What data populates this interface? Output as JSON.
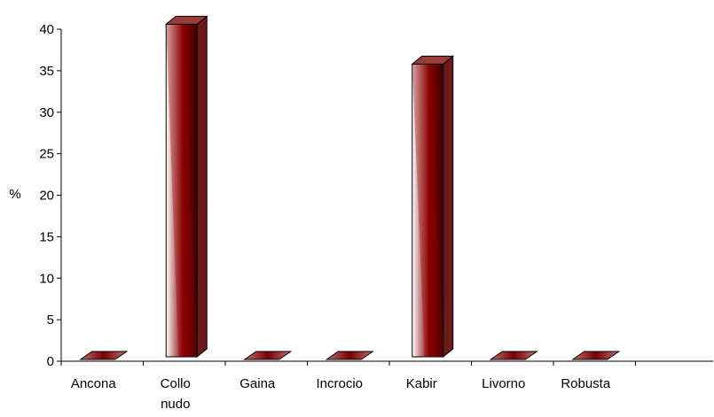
{
  "chart_data": {
    "type": "bar",
    "style": "3d-column",
    "categories": [
      "Ancona",
      "Collo nudo",
      "Gaina",
      "Incrocio",
      "Kabir",
      "Livorno",
      "Robusta"
    ],
    "values": [
      0,
      40.6,
      0,
      0,
      35.8,
      0,
      0
    ],
    "title": "",
    "xlabel": "",
    "ylabel": "%",
    "ylim": [
      0,
      40
    ],
    "yticks": [
      0,
      5,
      10,
      15,
      20,
      25,
      30,
      35,
      40
    ],
    "grid": false,
    "legend": "none",
    "colors": {
      "bar_dark": "#8b0000",
      "bar_light": "#ffffff",
      "bar_side": "#7a1a1a",
      "bar_top": "#a04040",
      "axis": "#000000"
    }
  }
}
